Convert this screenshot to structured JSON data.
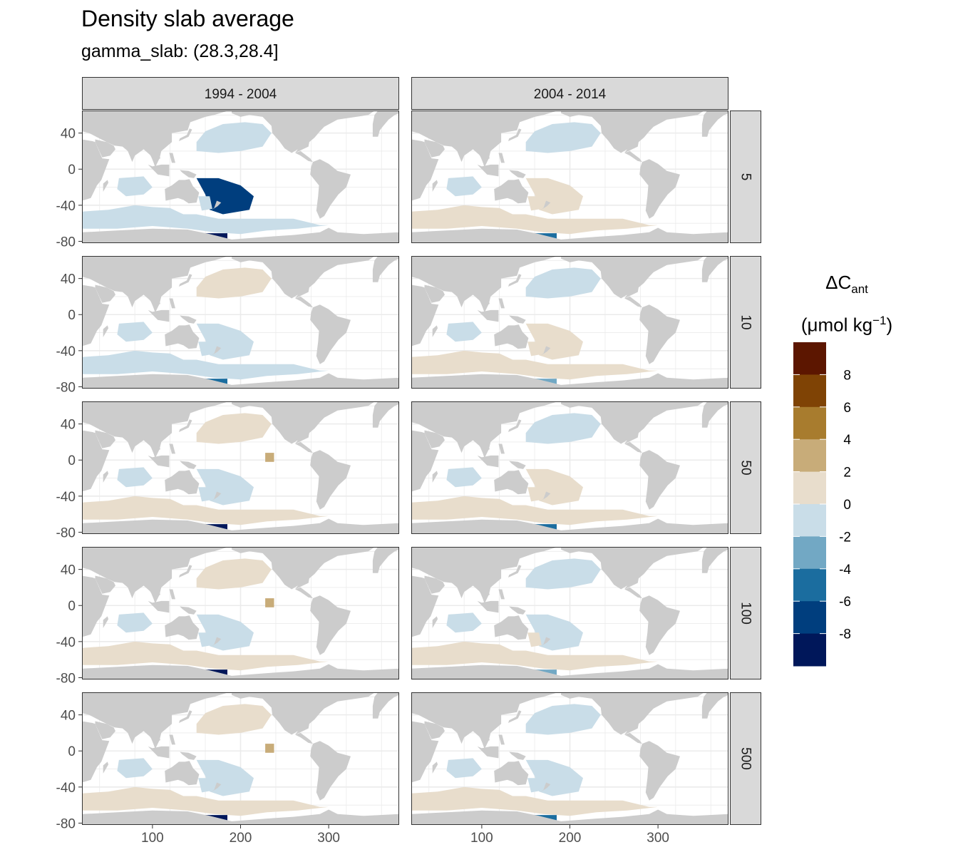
{
  "title": "Density slab average",
  "subtitle": "gamma_slab: (28.3,28.4]",
  "legend": {
    "title_symbol": "ΔC",
    "title_sub": "ant",
    "unit_open": "(μmol kg",
    "unit_sup": "−1",
    "unit_close": ")",
    "ticks": [
      "8",
      "6",
      "4",
      "2",
      "0",
      "-2",
      "-4",
      "-6",
      "-8"
    ],
    "colors": [
      "#5c1600",
      "#7f4305",
      "#a87c2e",
      "#c8ac79",
      "#e8ddcc",
      "#c9dde8",
      "#72a8c4",
      "#1b6d9f",
      "#003e7e",
      "#00175a"
    ]
  },
  "colors": {
    "land": "#cccccc",
    "panel_bg": "#ffffff",
    "grid": "#ebebeb",
    "strip_bg": "#d9d9d9"
  },
  "chart_data": {
    "type": "heatmap",
    "title": "Density slab average",
    "subtitle": "gamma_slab: (28.3,28.4]",
    "facet_columns": [
      "1994 - 2004",
      "2004 - 2014"
    ],
    "facet_rows": [
      "5",
      "10",
      "50",
      "100",
      "500"
    ],
    "xlim": [
      20,
      380
    ],
    "ylim": [
      -82,
      65
    ],
    "x_ticks": [
      100,
      200,
      300
    ],
    "y_ticks": [
      40,
      0,
      -40,
      -80
    ],
    "x_tick_labels": [
      "100",
      "200",
      "300"
    ],
    "y_tick_labels": [
      "40",
      "0",
      "-40",
      "-80"
    ],
    "grid": true,
    "legend_position": "right",
    "color_breaks": [
      10,
      8,
      6,
      4,
      2,
      0,
      -2,
      -4,
      -6,
      -8,
      -10
    ],
    "fill_label": "ΔC_ant (μmol kg−1)"
  }
}
